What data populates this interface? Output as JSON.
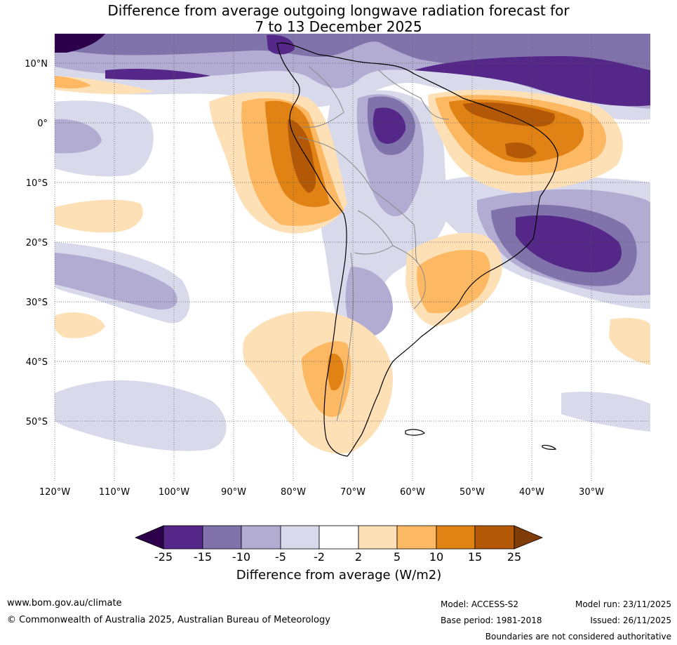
{
  "title": {
    "line1": "Difference from average outgoing longwave radiation forecast for",
    "line2": "7 to 13 December 2025"
  },
  "map": {
    "region": "South America",
    "lat_labels": [
      "10°N",
      "0°",
      "10°S",
      "20°S",
      "30°S",
      "40°S",
      "50°S"
    ],
    "lon_labels": [
      "120°W",
      "110°W",
      "100°W",
      "90°W",
      "80°W",
      "70°W",
      "60°W",
      "50°W",
      "40°W",
      "30°W"
    ],
    "colors": {
      "gridline": "#555555",
      "coast": "#000000",
      "border": "#888888"
    }
  },
  "colorbar": {
    "label": "Difference from average (W/m2)",
    "ticks": [
      "-25",
      "-15",
      "-10",
      "-5",
      "-2",
      "2",
      "5",
      "10",
      "15",
      "25"
    ],
    "colors": [
      "#2d004b",
      "#542788",
      "#8073ac",
      "#b2abd2",
      "#d8daeb",
      "#ffffff",
      "#fee0b6",
      "#fdb863",
      "#e08214",
      "#b35806",
      "#7f3b08"
    ]
  },
  "footer": {
    "website": "www.bom.gov.au/climate",
    "copyright": "© Commonwealth of Australia 2025, Australian Bureau of Meteorology",
    "model": "Model: ACCESS-S2",
    "base_period": "Base period: 1981-2018",
    "model_run": "Model run: 23/11/2025",
    "issued": "Issued: 26/11/2025",
    "disclaimer": "Boundaries are not considered authoritative"
  }
}
